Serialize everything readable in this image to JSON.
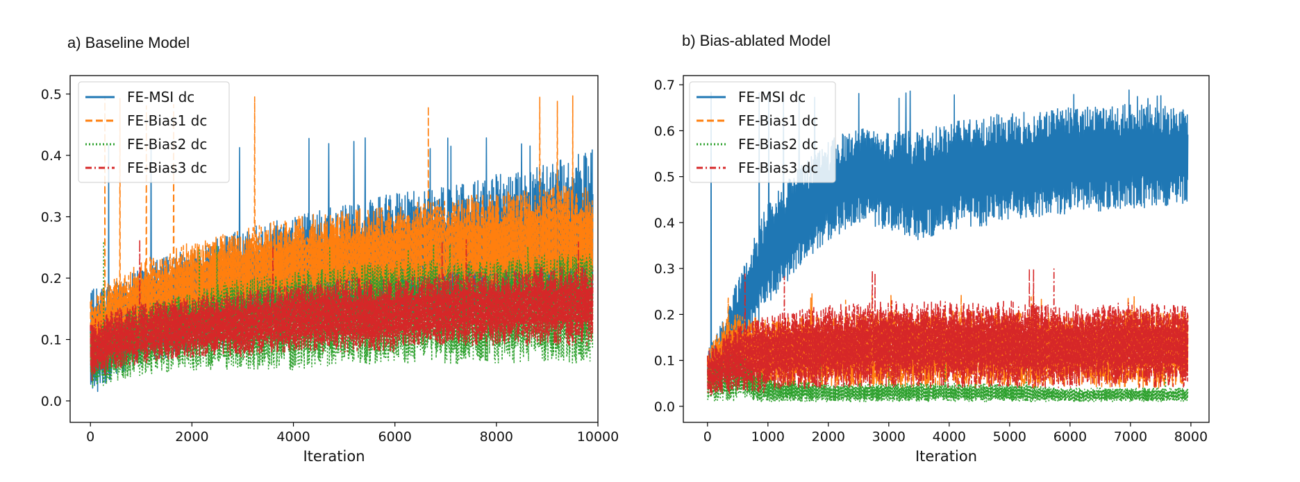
{
  "chart_data": [
    {
      "type": "line",
      "title": "a) Baseline Model",
      "xlabel": "Iteration",
      "ylabel": "",
      "xlim": [
        -400,
        10000
      ],
      "ylim": [
        -0.035,
        0.53
      ],
      "xticks": [
        0,
        2000,
        4000,
        6000,
        8000,
        10000
      ],
      "yticks": [
        0.0,
        0.1,
        0.2,
        0.3,
        0.4,
        0.5
      ],
      "ytick_labels": [
        "0.0",
        "0.1",
        "0.2",
        "0.3",
        "0.4",
        "0.5"
      ],
      "legend_position": "top-left",
      "x_end": 9900,
      "series": [
        {
          "name": "FE-MSI dc",
          "color": "#1f77b4",
          "style": "solid",
          "x": [
            0,
            500,
            1000,
            2000,
            3000,
            4000,
            5000,
            6000,
            7000,
            8000,
            9000,
            9900
          ],
          "lower": [
            0.0,
            0.04,
            0.06,
            0.08,
            0.09,
            0.1,
            0.11,
            0.12,
            0.12,
            0.13,
            0.13,
            0.13
          ],
          "upper": [
            0.18,
            0.2,
            0.22,
            0.25,
            0.28,
            0.3,
            0.32,
            0.34,
            0.35,
            0.37,
            0.39,
            0.41
          ],
          "peak": 0.43
        },
        {
          "name": "FE-Bias1 dc",
          "color": "#ff7f0e",
          "style": "dashed",
          "x": [
            0,
            500,
            1000,
            2000,
            3000,
            4000,
            5000,
            6000,
            7000,
            8000,
            9000,
            9900
          ],
          "lower": [
            0.05,
            0.07,
            0.09,
            0.11,
            0.13,
            0.14,
            0.15,
            0.15,
            0.16,
            0.16,
            0.16,
            0.16
          ],
          "upper": [
            0.17,
            0.2,
            0.23,
            0.26,
            0.28,
            0.3,
            0.31,
            0.32,
            0.33,
            0.34,
            0.35,
            0.35
          ],
          "peak": 0.5
        },
        {
          "name": "FE-Bias2 dc",
          "color": "#2ca02c",
          "style": "dotted",
          "x": [
            0,
            500,
            1000,
            2000,
            3000,
            4000,
            5000,
            6000,
            7000,
            8000,
            9000,
            9900
          ],
          "lower": [
            0.02,
            0.03,
            0.04,
            0.05,
            0.05,
            0.05,
            0.06,
            0.06,
            0.06,
            0.06,
            0.06,
            0.06
          ],
          "upper": [
            0.12,
            0.14,
            0.16,
            0.18,
            0.2,
            0.21,
            0.22,
            0.23,
            0.23,
            0.23,
            0.24,
            0.24
          ],
          "peak": 0.26
        },
        {
          "name": "FE-Bias3 dc",
          "color": "#d62728",
          "style": "dashdot",
          "x": [
            0,
            500,
            1000,
            2000,
            3000,
            4000,
            5000,
            6000,
            7000,
            8000,
            9000,
            9900
          ],
          "lower": [
            0.03,
            0.05,
            0.06,
            0.07,
            0.07,
            0.08,
            0.08,
            0.08,
            0.09,
            0.09,
            0.09,
            0.09
          ],
          "upper": [
            0.13,
            0.15,
            0.16,
            0.17,
            0.18,
            0.19,
            0.2,
            0.2,
            0.21,
            0.21,
            0.22,
            0.22
          ],
          "peak": 0.27
        }
      ]
    },
    {
      "type": "line",
      "title": "b) Bias-ablated Model",
      "xlabel": "Iteration",
      "ylabel": "",
      "xlim": [
        -400,
        8300
      ],
      "ylim": [
        -0.035,
        0.72
      ],
      "xticks": [
        0,
        1000,
        2000,
        3000,
        4000,
        5000,
        6000,
        7000,
        8000
      ],
      "yticks": [
        0.0,
        0.1,
        0.2,
        0.3,
        0.4,
        0.5,
        0.6,
        0.7
      ],
      "ytick_labels": [
        "0.0",
        "0.1",
        "0.2",
        "0.3",
        "0.4",
        "0.5",
        "0.6",
        "0.7"
      ],
      "legend_position": "top-left",
      "x_end": 7950,
      "series": [
        {
          "name": "FE-MSI dc",
          "color": "#1f77b4",
          "style": "solid",
          "x": [
            0,
            300,
            500,
            1000,
            1500,
            2000,
            2500,
            3000,
            3500,
            4000,
            5000,
            6000,
            7000,
            7950
          ],
          "lower": [
            0.03,
            0.06,
            0.1,
            0.22,
            0.3,
            0.36,
            0.4,
            0.38,
            0.36,
            0.38,
            0.4,
            0.42,
            0.43,
            0.44
          ],
          "upper": [
            0.12,
            0.2,
            0.28,
            0.45,
            0.52,
            0.58,
            0.61,
            0.6,
            0.6,
            0.62,
            0.64,
            0.65,
            0.66,
            0.65
          ],
          "peak": 0.69
        },
        {
          "name": "FE-Bias1 dc",
          "color": "#ff7f0e",
          "style": "dashed",
          "x": [
            0,
            300,
            500,
            1000,
            2000,
            3000,
            4000,
            5000,
            6000,
            7000,
            7950
          ],
          "lower": [
            0.03,
            0.04,
            0.04,
            0.04,
            0.04,
            0.04,
            0.04,
            0.04,
            0.04,
            0.04,
            0.04
          ],
          "upper": [
            0.12,
            0.2,
            0.2,
            0.19,
            0.2,
            0.21,
            0.21,
            0.21,
            0.2,
            0.21,
            0.21
          ],
          "peak": 0.25
        },
        {
          "name": "FE-Bias2 dc",
          "color": "#2ca02c",
          "style": "dotted",
          "x": [
            0,
            500,
            1000,
            2000,
            3000,
            4000,
            5000,
            6000,
            7000,
            7950
          ],
          "lower": [
            0.01,
            0.01,
            0.01,
            0.01,
            0.01,
            0.01,
            0.01,
            0.01,
            0.01,
            0.01
          ],
          "upper": [
            0.1,
            0.12,
            0.06,
            0.05,
            0.05,
            0.05,
            0.05,
            0.04,
            0.04,
            0.04
          ],
          "peak": 0.14
        },
        {
          "name": "FE-Bias3 dc",
          "color": "#d62728",
          "style": "dashdot",
          "x": [
            0,
            500,
            1000,
            2000,
            3000,
            4000,
            5000,
            6000,
            7000,
            7950
          ],
          "lower": [
            0.02,
            0.03,
            0.03,
            0.04,
            0.04,
            0.04,
            0.04,
            0.04,
            0.04,
            0.04
          ],
          "upper": [
            0.12,
            0.18,
            0.2,
            0.22,
            0.23,
            0.23,
            0.23,
            0.22,
            0.23,
            0.22
          ],
          "peak": 0.3
        }
      ]
    }
  ]
}
